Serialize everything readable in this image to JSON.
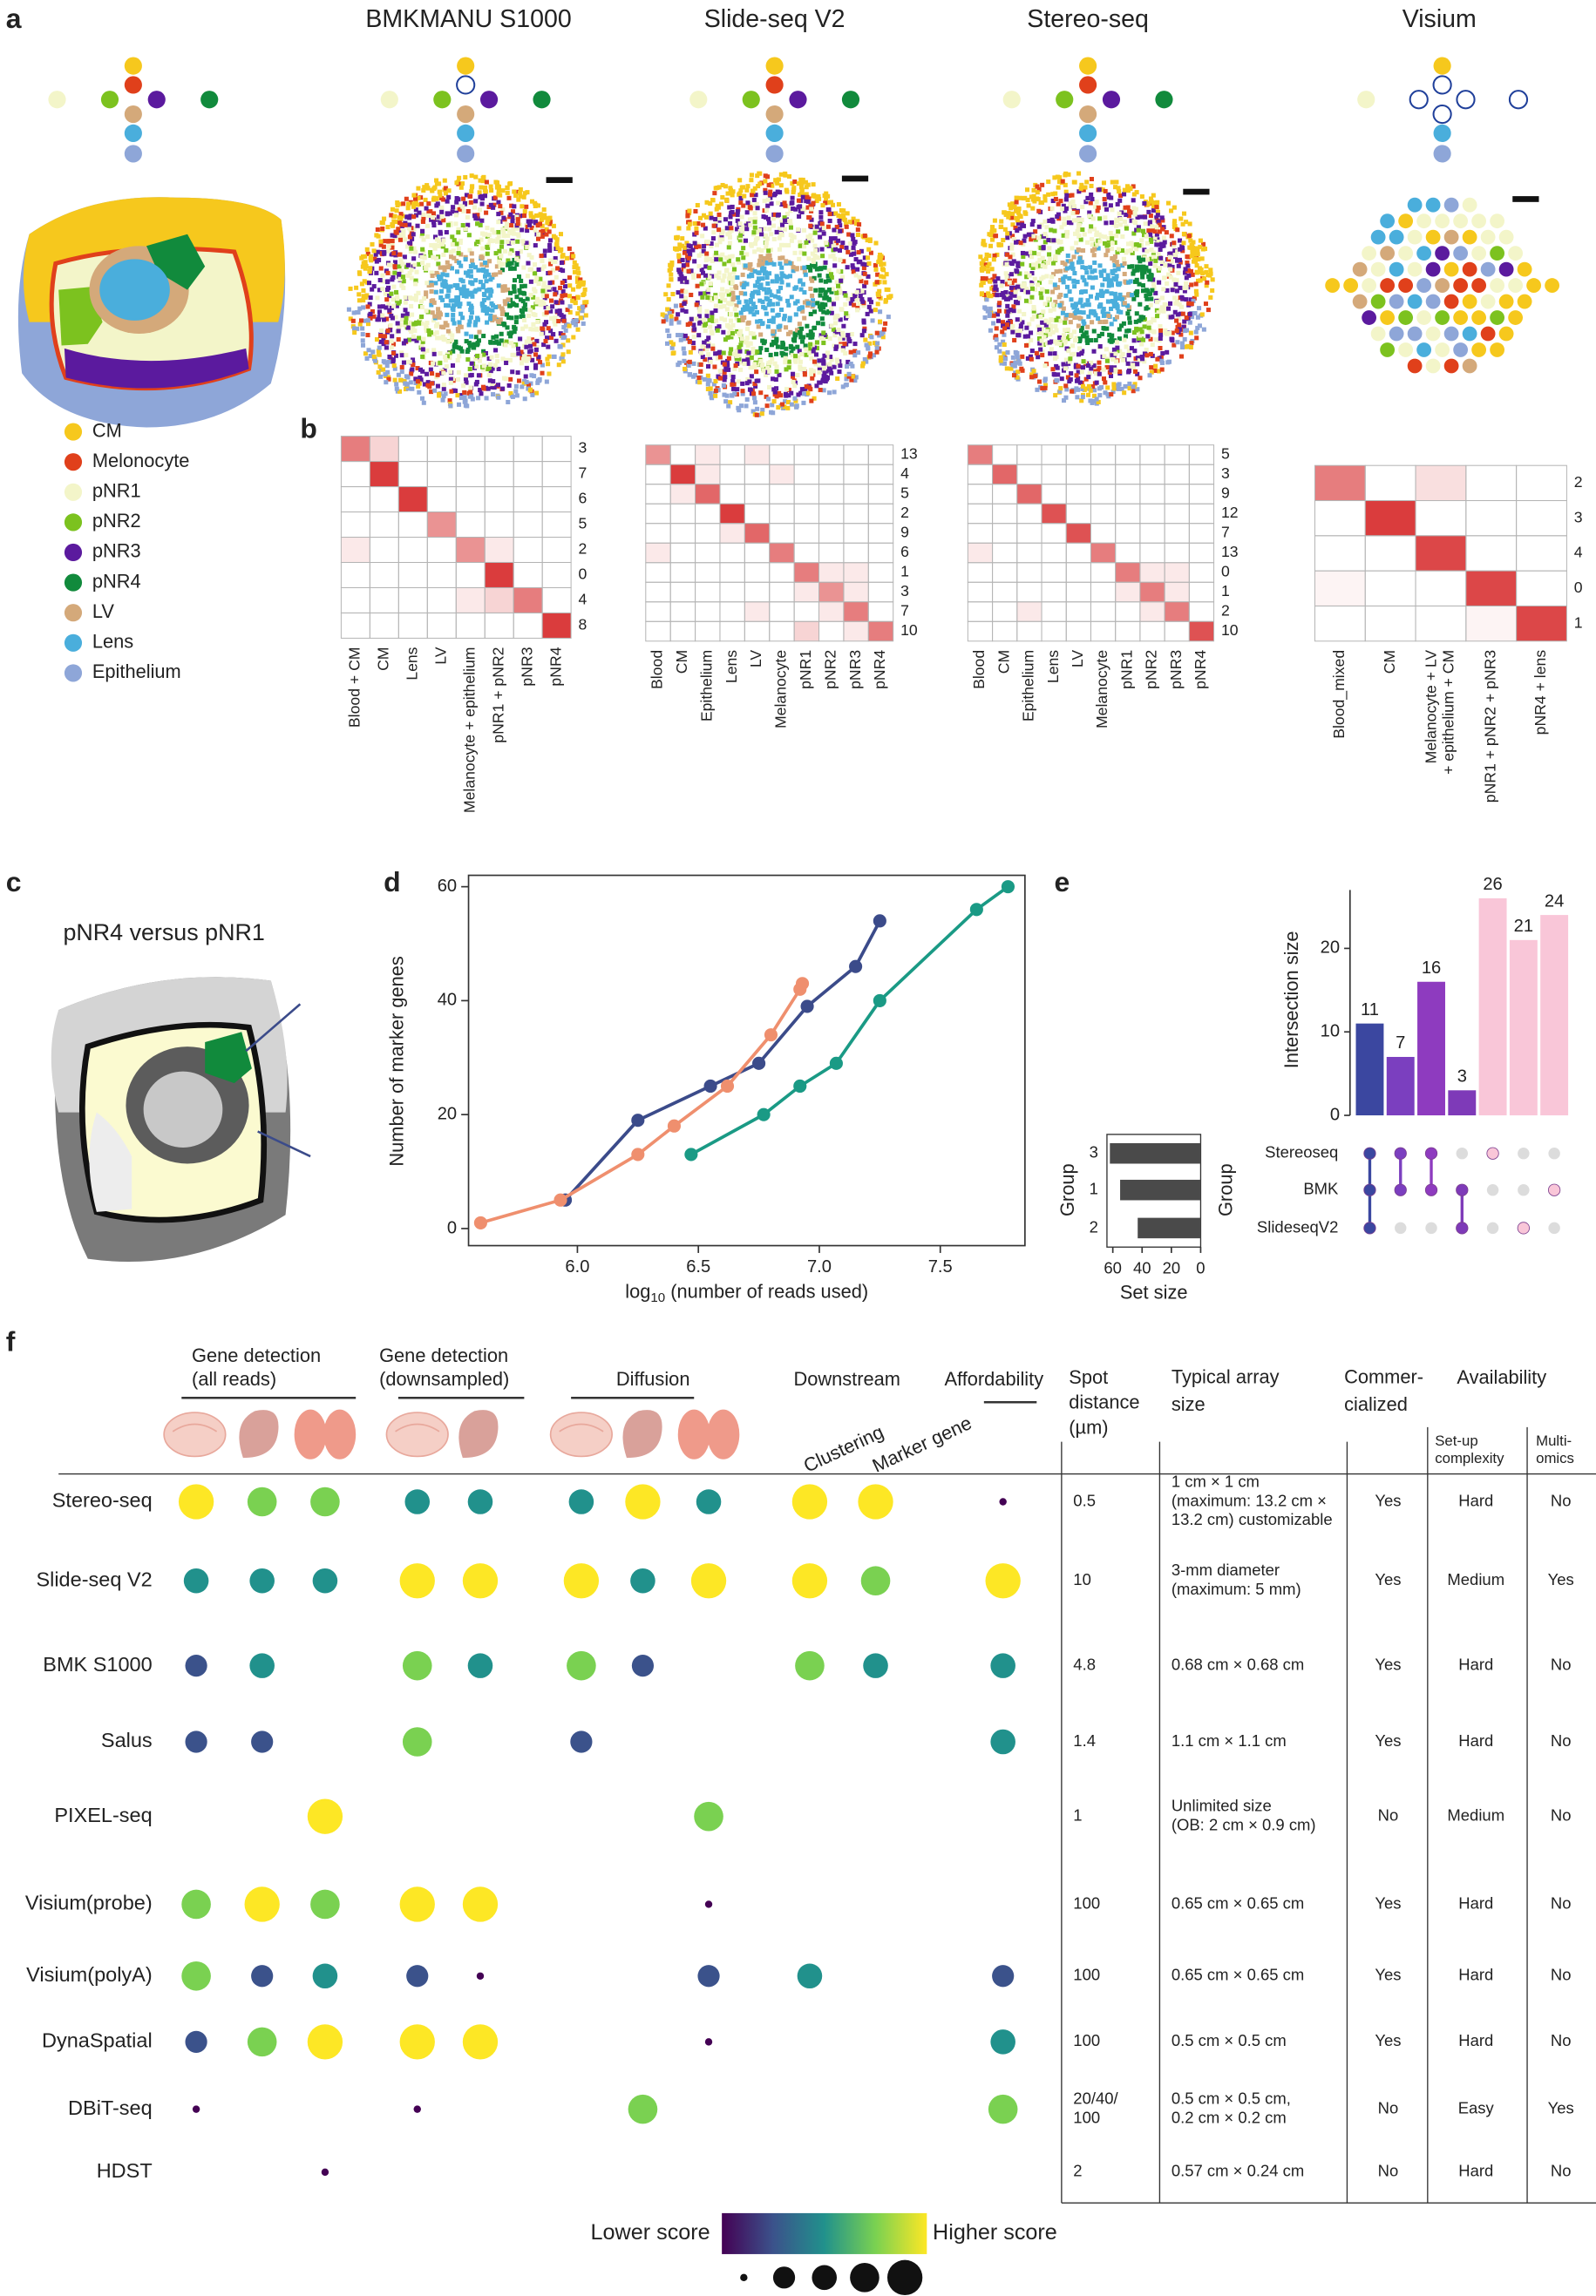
{
  "panel_labels": [
    "a",
    "b",
    "c",
    "d",
    "e",
    "f"
  ],
  "panel_a": {
    "platforms": [
      "BMKMANU S1000",
      "Slide-seq V2",
      "Stereo-seq",
      "Visium"
    ],
    "legend": [
      {
        "name": "CM",
        "color": "#f6c81d"
      },
      {
        "name": "Melonocyte",
        "color": "#e0401b"
      },
      {
        "name": "pNR1",
        "color": "#f3f5c9"
      },
      {
        "name": "pNR2",
        "color": "#7cc21f"
      },
      {
        "name": "pNR3",
        "color": "#5b1a9e"
      },
      {
        "name": "pNR4",
        "color": "#118a3c"
      },
      {
        "name": "LV",
        "color": "#d4a97a"
      },
      {
        "name": "Lens",
        "color": "#4aaedc"
      },
      {
        "name": "Epithelium",
        "color": "#8ea6d8"
      }
    ]
  },
  "panel_b": {
    "color": "#d62728",
    "heatmaps": [
      {
        "rows": [
          "3",
          "7",
          "6",
          "5",
          "2",
          "0",
          "4",
          "8"
        ],
        "columns": [
          "Blood + CM",
          "CM",
          "Lens",
          "LV",
          "Melanocyte + epithelium",
          "pNR1 + pNR2",
          "pNR3",
          "pNR4"
        ],
        "values": [
          [
            0.6,
            0.2,
            0,
            0,
            0,
            0,
            0,
            0
          ],
          [
            0,
            0.9,
            0,
            0,
            0,
            0,
            0,
            0
          ],
          [
            0,
            0,
            0.9,
            0,
            0,
            0,
            0,
            0
          ],
          [
            0,
            0,
            0,
            0.5,
            0,
            0,
            0,
            0
          ],
          [
            0.1,
            0,
            0,
            0,
            0.5,
            0.1,
            0,
            0
          ],
          [
            0,
            0,
            0,
            0,
            0,
            0.9,
            0,
            0
          ],
          [
            0,
            0,
            0,
            0,
            0.1,
            0.2,
            0.6,
            0
          ],
          [
            0,
            0,
            0,
            0,
            0,
            0,
            0,
            0.9
          ]
        ]
      },
      {
        "rows": [
          "13",
          "4",
          "5",
          "2",
          "9",
          "6",
          "1",
          "3",
          "7",
          "10"
        ],
        "columns": [
          "Blood",
          "CM",
          "Epithelium",
          "Lens",
          "LV",
          "Melanocyte",
          "pNR1",
          "pNR2",
          "pNR3",
          "pNR4"
        ],
        "values": [
          [
            0.5,
            0,
            0.1,
            0,
            0.1,
            0,
            0,
            0,
            0,
            0
          ],
          [
            0,
            0.9,
            0.1,
            0,
            0,
            0.1,
            0,
            0,
            0,
            0
          ],
          [
            0,
            0.1,
            0.7,
            0,
            0,
            0,
            0,
            0,
            0,
            0
          ],
          [
            0,
            0,
            0,
            0.9,
            0,
            0,
            0,
            0,
            0,
            0
          ],
          [
            0,
            0,
            0,
            0.1,
            0.7,
            0,
            0,
            0,
            0,
            0
          ],
          [
            0.1,
            0,
            0,
            0,
            0,
            0.6,
            0,
            0,
            0,
            0
          ],
          [
            0,
            0,
            0,
            0,
            0,
            0,
            0.6,
            0.1,
            0.1,
            0
          ],
          [
            0,
            0,
            0,
            0,
            0,
            0,
            0.1,
            0.5,
            0.1,
            0
          ],
          [
            0,
            0,
            0,
            0,
            0.1,
            0,
            0,
            0.1,
            0.6,
            0
          ],
          [
            0,
            0,
            0,
            0,
            0,
            0,
            0.2,
            0,
            0.1,
            0.6
          ]
        ]
      },
      {
        "rows": [
          "5",
          "3",
          "9",
          "12",
          "7",
          "13",
          "0",
          "1",
          "2",
          "10"
        ],
        "columns": [
          "Blood",
          "CM",
          "Epithelium",
          "Lens",
          "LV",
          "Melanocyte",
          "pNR1",
          "pNR2",
          "pNR3",
          "pNR4"
        ],
        "values": [
          [
            0.6,
            0,
            0,
            0,
            0,
            0,
            0,
            0,
            0,
            0
          ],
          [
            0,
            0.7,
            0,
            0,
            0,
            0,
            0,
            0,
            0,
            0
          ],
          [
            0,
            0,
            0.7,
            0,
            0,
            0,
            0,
            0,
            0,
            0
          ],
          [
            0,
            0,
            0,
            0.8,
            0,
            0,
            0,
            0,
            0,
            0
          ],
          [
            0,
            0,
            0,
            0,
            0.8,
            0,
            0,
            0,
            0,
            0
          ],
          [
            0.1,
            0,
            0,
            0,
            0,
            0.6,
            0,
            0,
            0,
            0
          ],
          [
            0,
            0,
            0,
            0,
            0,
            0,
            0.6,
            0.1,
            0.1,
            0
          ],
          [
            0,
            0,
            0,
            0,
            0,
            0,
            0.1,
            0.6,
            0.1,
            0
          ],
          [
            0,
            0,
            0.1,
            0,
            0,
            0,
            0,
            0.1,
            0.6,
            0
          ],
          [
            0,
            0,
            0,
            0,
            0,
            0,
            0,
            0,
            0,
            0.8
          ]
        ]
      },
      {
        "rows": [
          "2",
          "3",
          "4",
          "0",
          "1"
        ],
        "columns": [
          [
            "Blood_mixed"
          ],
          [
            "CM"
          ],
          [
            "Melanocyte + LV",
            "+ epithelium + CM"
          ],
          [
            "pNR1 + pNR2 + pNR3"
          ],
          [
            "pNR4 + lens"
          ]
        ],
        "values": [
          [
            0.6,
            0,
            0.15,
            0,
            0
          ],
          [
            0,
            0.9,
            0,
            0,
            0
          ],
          [
            0,
            0,
            0.85,
            0,
            0
          ],
          [
            0.05,
            0,
            0,
            0.85,
            0
          ],
          [
            0,
            0,
            0,
            0.05,
            0.85
          ]
        ]
      }
    ]
  },
  "panel_c": {
    "title": "pNR4 versus pNR1"
  },
  "chart_data": [
    {
      "type": "line",
      "xlabel_parts": [
        "log",
        "10",
        " (number of reads used)"
      ],
      "ylabel": "Number of marker genes",
      "xlim": [
        5.55,
        7.85
      ],
      "ylim": [
        -3,
        62
      ],
      "xticks": [
        {
          "value": 6,
          "label": "6.0"
        },
        {
          "value": 6.5,
          "label": "6.5"
        },
        {
          "value": 7,
          "label": "7.0"
        },
        {
          "value": 7.5,
          "label": "7.5"
        }
      ],
      "yticks": [
        0,
        20,
        40,
        60
      ],
      "series": [
        {
          "color": "#3b4b8a",
          "x": [
            5.95,
            6.25,
            6.55,
            6.75,
            6.95,
            7.15,
            7.25
          ],
          "values": [
            5,
            19,
            25,
            29,
            39,
            46,
            54
          ]
        },
        {
          "color": "#ef8f6e",
          "x": [
            5.6,
            5.93,
            6.25,
            6.4,
            6.62,
            6.8,
            6.92,
            6.93
          ],
          "values": [
            1,
            5,
            13,
            18,
            25,
            34,
            42,
            43
          ]
        },
        {
          "color": "#1a9a85",
          "x": [
            6.47,
            6.77,
            6.92,
            7.07,
            7.25,
            7.65,
            7.78
          ],
          "values": [
            13,
            20,
            25,
            29,
            40,
            56,
            60
          ]
        }
      ]
    },
    {
      "type": "upset",
      "ylabel": "Intersection size",
      "ylim": [
        0,
        27
      ],
      "yticks": [
        0,
        10,
        20
      ],
      "values": [
        11,
        7,
        16,
        3,
        26,
        21,
        24
      ],
      "colors": [
        "#3b47a0",
        "#7b3fbf",
        "#8e3bbf",
        "#7e3ab8",
        "#f9c6d8",
        "#f9c6d8",
        "#f9c6d8"
      ],
      "sets": [
        "Stereoseq",
        "BMK",
        "SlideseqV2"
      ],
      "membership": [
        [
          true,
          true,
          true
        ],
        [
          true,
          true,
          false
        ],
        [
          true,
          true,
          false
        ],
        [
          false,
          true,
          true
        ],
        [
          true,
          false,
          false
        ],
        [
          false,
          false,
          true
        ],
        [
          false,
          true,
          false
        ]
      ],
      "matrix_ylabel": "Group",
      "set_size": {
        "xlabel": "Set size",
        "ylabel": "Group",
        "categories": [
          "3",
          "1",
          "2"
        ],
        "values": [
          62,
          55,
          43
        ],
        "xlim": [
          64,
          0
        ],
        "xticks": [
          60,
          40,
          20,
          0
        ],
        "color": "#4a4a4a"
      }
    }
  ],
  "panel_f": {
    "groups": [
      [
        "Gene detection",
        "(all reads)"
      ],
      [
        "Gene detection",
        "(downsampled)"
      ],
      [
        "Diffusion"
      ],
      [
        "Downstream"
      ],
      [
        "Affordability"
      ]
    ],
    "subheaders": [
      "Clustering",
      "Marker gene"
    ],
    "headers": {
      "spot": [
        "Spot",
        "distance",
        "(µm)"
      ],
      "array": [
        "Typical array",
        "size"
      ],
      "commercialized": [
        "Commer-",
        "cialized"
      ],
      "availability": "Availability",
      "setup": [
        "Set-up",
        "complexity"
      ],
      "multiomics": [
        "Multi-",
        "omics"
      ]
    },
    "score_colors": [
      "#440154",
      "#3b528b",
      "#21918c",
      "#7ad151",
      "#fde725"
    ],
    "legend": {
      "low": "Lower score",
      "high": "Higher score"
    },
    "rows": [
      {
        "name": "Stereo-seq",
        "scores": [
          5,
          4,
          4,
          3,
          3,
          3,
          5,
          3,
          5,
          5,
          1
        ],
        "spot": [
          "0.5"
        ],
        "array": [
          "1 cm × 1 cm",
          "(maximum: 13.2 cm ×",
          "13.2 cm) customizable"
        ],
        "commercialized": "Yes",
        "setup": "Hard",
        "multiomics": "No"
      },
      {
        "name": "Slide-seq V2",
        "scores": [
          3,
          3,
          3,
          5,
          5,
          5,
          3,
          5,
          5,
          4,
          5
        ],
        "spot": [
          "10"
        ],
        "array": [
          "3-mm diameter",
          "(maximum: 5 mm)"
        ],
        "commercialized": "Yes",
        "setup": "Medium",
        "multiomics": "Yes"
      },
      {
        "name": "BMK S1000",
        "scores": [
          2,
          3,
          null,
          4,
          3,
          4,
          2,
          null,
          4,
          3,
          3
        ],
        "spot": [
          "4.8"
        ],
        "array": [
          "0.68 cm × 0.68 cm"
        ],
        "commercialized": "Yes",
        "setup": "Hard",
        "multiomics": "No"
      },
      {
        "name": "Salus",
        "scores": [
          2,
          2,
          null,
          4,
          null,
          2,
          null,
          null,
          null,
          null,
          3
        ],
        "spot": [
          "1.4"
        ],
        "array": [
          "1.1 cm × 1.1 cm"
        ],
        "commercialized": "Yes",
        "setup": "Hard",
        "multiomics": "No"
      },
      {
        "name": "PIXEL-seq",
        "scores": [
          null,
          null,
          5,
          null,
          null,
          null,
          null,
          4,
          null,
          null,
          null
        ],
        "spot": [
          "1"
        ],
        "array": [
          "Unlimited size",
          "(OB: 2 cm × 0.9 cm)"
        ],
        "commercialized": "No",
        "setup": "Medium",
        "multiomics": "No"
      },
      {
        "name": "Visium(probe)",
        "scores": [
          4,
          5,
          4,
          5,
          5,
          null,
          null,
          1,
          null,
          null,
          null
        ],
        "spot": [
          "100"
        ],
        "array": [
          "0.65 cm × 0.65 cm"
        ],
        "commercialized": "Yes",
        "setup": "Hard",
        "multiomics": "No"
      },
      {
        "name": "Visium(polyA)",
        "scores": [
          4,
          2,
          3,
          2,
          1,
          null,
          null,
          2,
          3,
          null,
          2
        ],
        "spot": [
          "100"
        ],
        "array": [
          "0.65 cm × 0.65 cm"
        ],
        "commercialized": "Yes",
        "setup": "Hard",
        "multiomics": "No"
      },
      {
        "name": "DynaSpatial",
        "scores": [
          2,
          4,
          5,
          5,
          5,
          null,
          null,
          1,
          null,
          null,
          3
        ],
        "spot": [
          "100"
        ],
        "array": [
          "0.5 cm × 0.5 cm"
        ],
        "commercialized": "Yes",
        "setup": "Hard",
        "multiomics": "No"
      },
      {
        "name": "DBiT-seq",
        "scores": [
          1,
          null,
          null,
          1,
          null,
          null,
          4,
          null,
          null,
          null,
          4
        ],
        "spot": [
          "20/40/",
          "100"
        ],
        "array": [
          "0.5 cm × 0.5 cm,",
          "0.2 cm × 0.2 cm"
        ],
        "commercialized": "No",
        "setup": "Easy",
        "multiomics": "Yes"
      },
      {
        "name": "HDST",
        "scores": [
          null,
          null,
          1,
          null,
          null,
          null,
          null,
          null,
          null,
          null,
          null
        ],
        "spot": [
          "2"
        ],
        "array": [
          "0.57 cm × 0.24 cm"
        ],
        "commercialized": "No",
        "setup": "Hard",
        "multiomics": "No"
      }
    ]
  }
}
